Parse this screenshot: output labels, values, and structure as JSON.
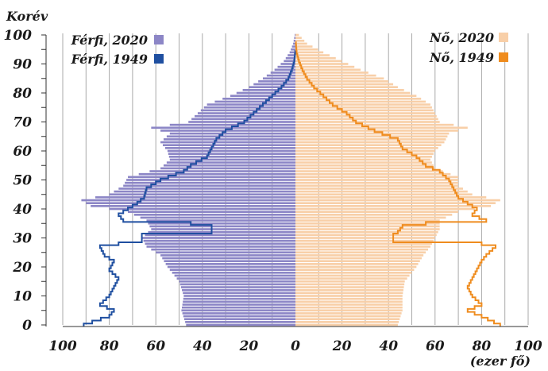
{
  "chart_data": {
    "type": "population-pyramid",
    "y_axis_title": "Korév",
    "x_axis_unit": "(ezer fő)",
    "x_ticks": [
      "100",
      "80",
      "60",
      "40",
      "20",
      "0",
      "20",
      "40",
      "60",
      "80",
      "100"
    ],
    "y_ticks": [
      "0",
      "10",
      "20",
      "30",
      "40",
      "50",
      "60",
      "70",
      "80",
      "90",
      "100"
    ],
    "xlim": [
      -100,
      100
    ],
    "ylim": [
      0,
      100
    ],
    "colors": {
      "male_2020": "#8c86c6",
      "male_1949": "#1f4fa0",
      "female_2020": "#f8cfa8",
      "female_1949": "#ef8c1e"
    },
    "legend": {
      "male_2020": "Férfi, 2020",
      "male_1949": "Férfi, 1949",
      "female_2020": "Nő, 2020",
      "female_1949": "Nő, 1949"
    },
    "series": [
      {
        "name": "Férfi, 2020",
        "kind": "bars",
        "anchors": [
          [
            0,
            47
          ],
          [
            5,
            49
          ],
          [
            10,
            48
          ],
          [
            15,
            50
          ],
          [
            20,
            55
          ],
          [
            24,
            58
          ],
          [
            27,
            64
          ],
          [
            30,
            66
          ],
          [
            33,
            62
          ],
          [
            36,
            64
          ],
          [
            39,
            72
          ],
          [
            41,
            88
          ],
          [
            43,
            92
          ],
          [
            45,
            80
          ],
          [
            48,
            74
          ],
          [
            51,
            72
          ],
          [
            54,
            58
          ],
          [
            57,
            54
          ],
          [
            60,
            55
          ],
          [
            63,
            58
          ],
          [
            66,
            54
          ],
          [
            68,
            62
          ],
          [
            70,
            46
          ],
          [
            73,
            42
          ],
          [
            76,
            38
          ],
          [
            79,
            28
          ],
          [
            82,
            20
          ],
          [
            85,
            14
          ],
          [
            88,
            9
          ],
          [
            91,
            5
          ],
          [
            94,
            2.5
          ],
          [
            97,
            1
          ],
          [
            100,
            0.3
          ]
        ]
      },
      {
        "name": "Férfi, 1949",
        "kind": "step",
        "anchors": [
          [
            0,
            91
          ],
          [
            3,
            80
          ],
          [
            5,
            78
          ],
          [
            7,
            84
          ],
          [
            10,
            80
          ],
          [
            13,
            78
          ],
          [
            16,
            76
          ],
          [
            19,
            80
          ],
          [
            22,
            78
          ],
          [
            24,
            82
          ],
          [
            27,
            84
          ],
          [
            28,
            76
          ],
          [
            29,
            66
          ],
          [
            31,
            66
          ],
          [
            32,
            36
          ],
          [
            34,
            36
          ],
          [
            35,
            45
          ],
          [
            36,
            74
          ],
          [
            38,
            76
          ],
          [
            40,
            72
          ],
          [
            42,
            68
          ],
          [
            44,
            65
          ],
          [
            47,
            64
          ],
          [
            50,
            58
          ],
          [
            53,
            48
          ],
          [
            55,
            45
          ],
          [
            58,
            38
          ],
          [
            61,
            36
          ],
          [
            64,
            34
          ],
          [
            67,
            30
          ],
          [
            70,
            22
          ],
          [
            73,
            18
          ],
          [
            76,
            14
          ],
          [
            79,
            10
          ],
          [
            82,
            6
          ],
          [
            85,
            3
          ],
          [
            88,
            1.5
          ],
          [
            91,
            0.5
          ],
          [
            94,
            0.1
          ]
        ]
      },
      {
        "name": "Nő, 2020",
        "kind": "bars",
        "anchors": [
          [
            0,
            44
          ],
          [
            5,
            46
          ],
          [
            10,
            46
          ],
          [
            15,
            47
          ],
          [
            20,
            52
          ],
          [
            24,
            55
          ],
          [
            27,
            58
          ],
          [
            30,
            60
          ],
          [
            33,
            62
          ],
          [
            36,
            62
          ],
          [
            39,
            70
          ],
          [
            41,
            84
          ],
          [
            43,
            88
          ],
          [
            45,
            76
          ],
          [
            48,
            70
          ],
          [
            51,
            70
          ],
          [
            54,
            60
          ],
          [
            57,
            58
          ],
          [
            60,
            60
          ],
          [
            63,
            64
          ],
          [
            66,
            66
          ],
          [
            68,
            74
          ],
          [
            70,
            62
          ],
          [
            73,
            60
          ],
          [
            76,
            58
          ],
          [
            79,
            52
          ],
          [
            82,
            44
          ],
          [
            85,
            38
          ],
          [
            88,
            28
          ],
          [
            91,
            20
          ],
          [
            94,
            12
          ],
          [
            97,
            5
          ],
          [
            100,
            1.5
          ]
        ]
      },
      {
        "name": "Nő, 1949",
        "kind": "step",
        "anchors": [
          [
            0,
            88
          ],
          [
            3,
            80
          ],
          [
            5,
            74
          ],
          [
            7,
            80
          ],
          [
            10,
            76
          ],
          [
            13,
            74
          ],
          [
            16,
            76
          ],
          [
            19,
            78
          ],
          [
            22,
            80
          ],
          [
            24,
            82
          ],
          [
            27,
            86
          ],
          [
            28,
            80
          ],
          [
            29,
            42
          ],
          [
            31,
            42
          ],
          [
            32,
            44
          ],
          [
            34,
            46
          ],
          [
            35,
            56
          ],
          [
            36,
            82
          ],
          [
            38,
            76
          ],
          [
            40,
            78
          ],
          [
            42,
            74
          ],
          [
            44,
            70
          ],
          [
            47,
            68
          ],
          [
            50,
            66
          ],
          [
            53,
            62
          ],
          [
            55,
            56
          ],
          [
            58,
            52
          ],
          [
            61,
            46
          ],
          [
            64,
            44
          ],
          [
            67,
            34
          ],
          [
            70,
            26
          ],
          [
            73,
            22
          ],
          [
            76,
            16
          ],
          [
            79,
            12
          ],
          [
            82,
            8
          ],
          [
            85,
            5
          ],
          [
            88,
            3
          ],
          [
            91,
            1.5
          ],
          [
            94,
            0.5
          ],
          [
            97,
            0.2
          ]
        ]
      }
    ],
    "gridlines": "vertical",
    "legend_placement": "top"
  }
}
